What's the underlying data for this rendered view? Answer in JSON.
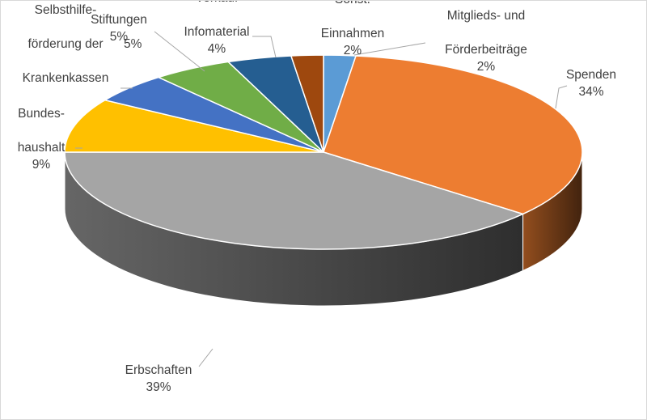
{
  "chart_data": {
    "type": "pie",
    "style": "3d",
    "slices": [
      {
        "label": "Mitglieds- und Förderbeiträge",
        "value": 2,
        "value_label": "2%",
        "color": "#5b9bd5"
      },
      {
        "label": "Spenden",
        "value": 34,
        "value_label": "34%",
        "color": "#ed7d31"
      },
      {
        "label": "Erbschaften",
        "value": 39,
        "value_label": "39%",
        "color": "#a5a5a5"
      },
      {
        "label": "Bundeshaushalt",
        "value": 9,
        "value_label": "9%",
        "color": "#ffc000"
      },
      {
        "label": "Selbsthilfeförderung der Krankenkassen",
        "value": 5,
        "value_label": "5%",
        "color": "#4472c4"
      },
      {
        "label": "Stiftungen",
        "value": 5,
        "value_label": "5%",
        "color": "#70ad47"
      },
      {
        "label": "Verkauf Infomaterial",
        "value": 4,
        "value_label": "4%",
        "color": "#255e91"
      },
      {
        "label": "Sonst. Einnahmen",
        "value": 2,
        "value_label": "2%",
        "color": "#9e480e"
      }
    ],
    "legend": "none",
    "data_labels": "outside with leader lines"
  }
}
